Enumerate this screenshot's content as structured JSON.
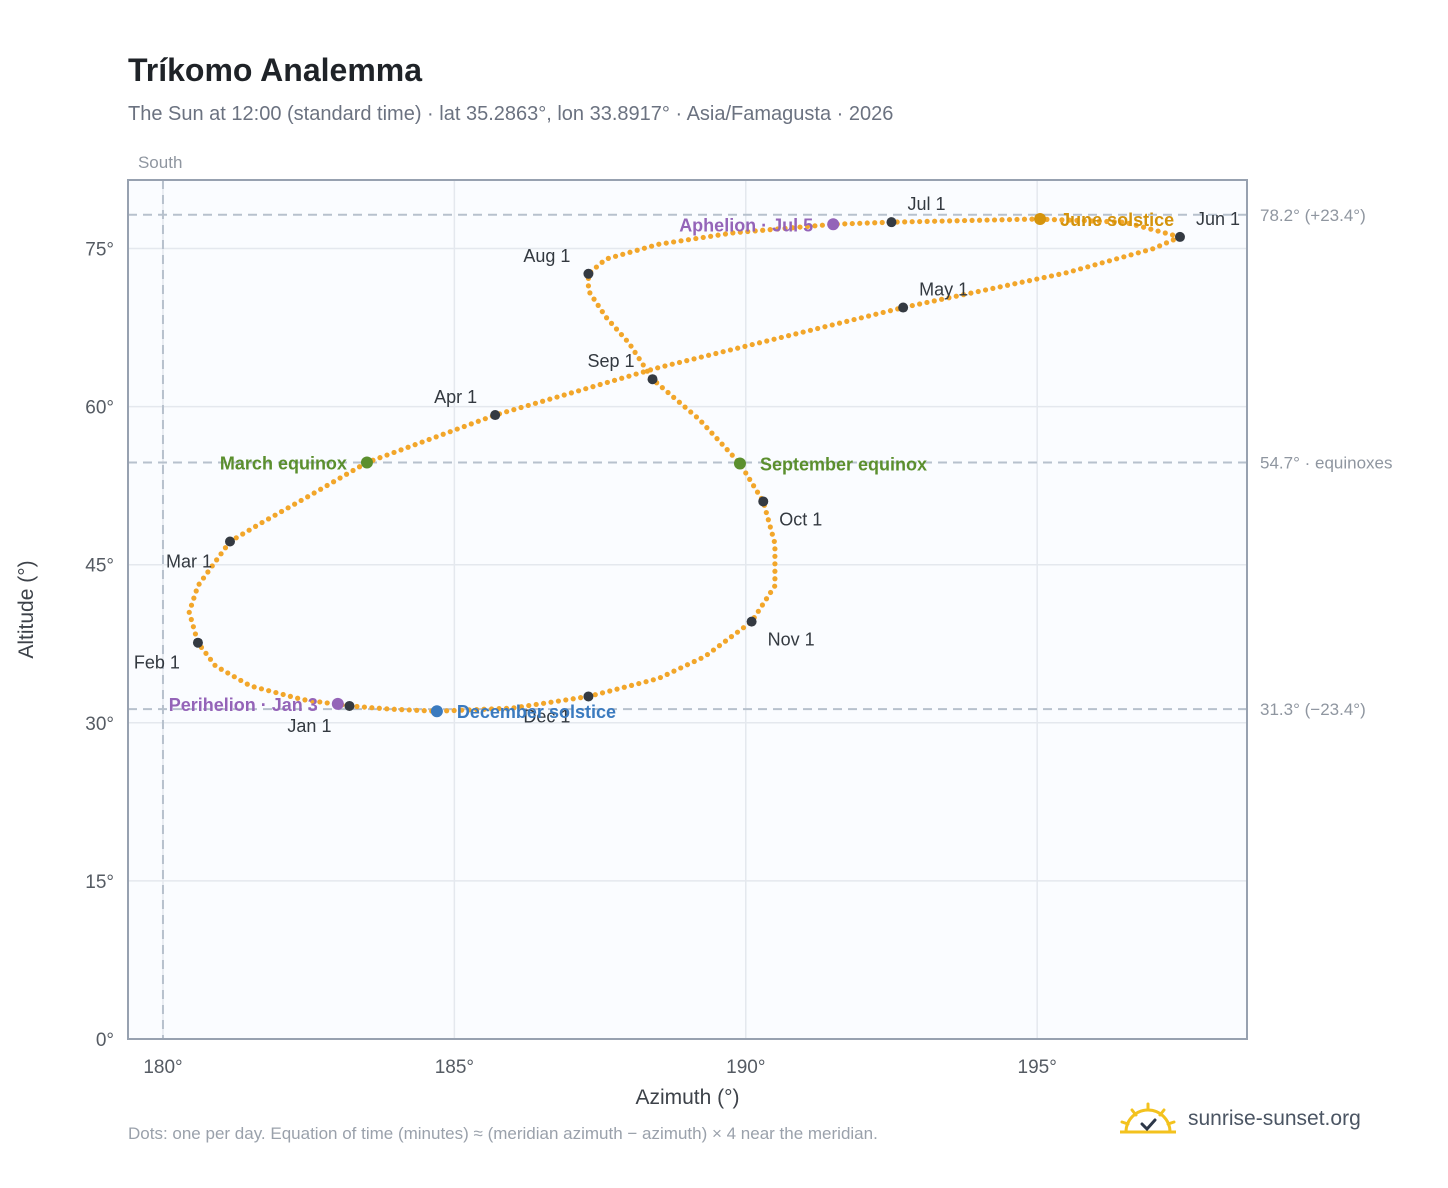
{
  "header": {
    "title": "Tríkomo Analemma",
    "subtitle": "The Sun at 12:00 (standard time) · lat 35.2863°, lon 33.8917° · Asia/Famagusta · 2026"
  },
  "footer": {
    "note": "Dots: one per day. Equation of time (minutes) ≈ (meridian azimuth − azimuth) × 4 near the meridian.",
    "brand": "sunrise-sunset.org"
  },
  "chart_data": {
    "type": "scatter",
    "xlabel": "Azimuth (°)",
    "ylabel": "Altitude (°)",
    "xlim": [
      179.4,
      198.6
    ],
    "ylim": [
      0,
      81.5
    ],
    "x_ticks": [
      180,
      185,
      190,
      195
    ],
    "x_tick_labels": [
      "180°",
      "185°",
      "190°",
      "195°"
    ],
    "y_ticks": [
      0,
      15,
      30,
      45,
      60,
      75
    ],
    "y_tick_labels": [
      "0°",
      "15°",
      "30°",
      "45°",
      "60°",
      "75°"
    ],
    "grid": true,
    "meridian": {
      "azimuth": 180,
      "label": "South"
    },
    "reference_lines": [
      {
        "altitude": 78.2,
        "label": "78.2° (+23.4°)"
      },
      {
        "altitude": 54.7,
        "label": "54.7° · equinoxes"
      },
      {
        "altitude": 31.3,
        "label": "31.3° (−23.4°)"
      }
    ],
    "series": [
      {
        "points": [
          [
            183.2,
            31.6
          ],
          [
            182.4,
            32.2
          ],
          [
            181.5,
            33.5
          ],
          [
            180.9,
            35.4
          ],
          [
            180.6,
            37.6
          ],
          [
            180.45,
            40.5
          ],
          [
            180.6,
            43.0
          ],
          [
            180.9,
            45.3
          ],
          [
            181.15,
            47.2
          ],
          [
            181.7,
            49.0
          ],
          [
            182.5,
            51.5
          ],
          [
            183.5,
            54.7
          ],
          [
            185.7,
            59.2
          ],
          [
            188.5,
            63.7
          ],
          [
            192.7,
            69.4
          ],
          [
            195.5,
            72.7
          ],
          [
            197.0,
            75.0
          ],
          [
            197.45,
            76.1
          ],
          [
            196.5,
            77.5
          ],
          [
            195.0,
            77.8
          ],
          [
            192.5,
            77.5
          ],
          [
            191.5,
            77.3
          ],
          [
            189.8,
            76.5
          ],
          [
            188.5,
            75.4
          ],
          [
            187.6,
            74.0
          ],
          [
            187.3,
            72.6
          ],
          [
            187.3,
            71.0
          ],
          [
            187.6,
            68.5
          ],
          [
            188.0,
            66.0
          ],
          [
            188.4,
            62.6
          ],
          [
            189.2,
            58.8
          ],
          [
            189.9,
            54.6
          ],
          [
            190.3,
            51.0
          ],
          [
            190.5,
            47.0
          ],
          [
            190.5,
            43.0
          ],
          [
            190.1,
            39.6
          ],
          [
            189.3,
            36.3
          ],
          [
            188.5,
            34.2
          ],
          [
            187.3,
            32.5
          ],
          [
            186.0,
            31.4
          ],
          [
            184.7,
            31.1
          ],
          [
            183.9,
            31.3
          ],
          [
            183.2,
            31.6
          ]
        ]
      }
    ],
    "month_markers": [
      {
        "label": "Jan 1",
        "x": 183.2,
        "y": 31.6,
        "label_pos": "below-left"
      },
      {
        "label": "Feb 1",
        "x": 180.6,
        "y": 37.6,
        "label_pos": "below-left"
      },
      {
        "label": "Mar 1",
        "x": 181.15,
        "y": 47.2,
        "label_pos": "below-left"
      },
      {
        "label": "Apr 1",
        "x": 185.7,
        "y": 59.2,
        "label_pos": "above-left"
      },
      {
        "label": "May 1",
        "x": 192.7,
        "y": 69.4,
        "label_pos": "above-right"
      },
      {
        "label": "Jun 1",
        "x": 197.45,
        "y": 76.1,
        "label_pos": "above-right"
      },
      {
        "label": "Jul 1",
        "x": 192.5,
        "y": 77.5,
        "label_pos": "above-right"
      },
      {
        "label": "Aug 1",
        "x": 187.3,
        "y": 72.6,
        "label_pos": "above-left"
      },
      {
        "label": "Sep 1",
        "x": 188.4,
        "y": 62.6,
        "label_pos": "above-left"
      },
      {
        "label": "Oct 1",
        "x": 190.3,
        "y": 51.0,
        "label_pos": "below-right"
      },
      {
        "label": "Nov 1",
        "x": 190.1,
        "y": 39.6,
        "label_pos": "below-right"
      },
      {
        "label": "Dec 1",
        "x": 187.3,
        "y": 32.5,
        "label_pos": "below-left"
      }
    ],
    "events": [
      {
        "label": "March equinox",
        "x": 183.5,
        "y": 54.7,
        "color": "#5b8f2e",
        "label_pos": "left"
      },
      {
        "label": "September equinox",
        "x": 189.9,
        "y": 54.6,
        "color": "#5b8f2e",
        "label_pos": "right"
      },
      {
        "label": "June solstice",
        "x": 195.05,
        "y": 77.8,
        "color": "#d4930c",
        "label_pos": "right"
      },
      {
        "label": "December solstice",
        "x": 184.7,
        "y": 31.1,
        "color": "#3a7abf",
        "label_pos": "right"
      },
      {
        "label": "Aphelion · Jul 5",
        "x": 191.5,
        "y": 77.3,
        "color": "#9464b8",
        "label_pos": "left"
      },
      {
        "label": "Perihelion · Jan 3",
        "x": 183.0,
        "y": 31.8,
        "color": "#9464b8",
        "label_pos": "left"
      }
    ],
    "colors": {
      "analemma": "#f2a62a",
      "month_dot": "#343a42",
      "plot_bg": "#fafcff",
      "grid": "#e4e8ee",
      "frame": "#97a1b0",
      "reference": "#b7c1cd"
    }
  }
}
